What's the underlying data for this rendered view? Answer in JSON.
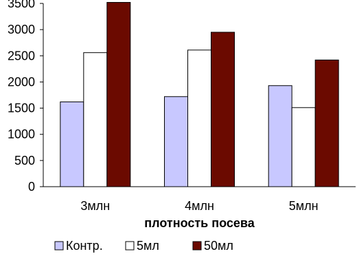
{
  "chart_data": {
    "type": "bar",
    "categories": [
      "3млн",
      "4млн",
      "5млн"
    ],
    "series": [
      {
        "name": "Контр.",
        "values": [
          1620,
          1720,
          1930
        ],
        "color": "#c8c8ff"
      },
      {
        "name": "5мл",
        "values": [
          2560,
          2610,
          1510
        ],
        "color": "#ffffff"
      },
      {
        "name": "50мл",
        "values": [
          3520,
          2950,
          2420
        ],
        "color": "#6b0a00"
      }
    ],
    "title": "",
    "xlabel": "плотность посева",
    "ylabel": "",
    "ylim": [
      0,
      3500
    ],
    "yticks": [
      0,
      500,
      1000,
      1500,
      2000,
      2500,
      3000,
      3500
    ],
    "ytick_labels": [
      "0",
      "500",
      "1000",
      "1500",
      "2000",
      "2500",
      "3000",
      "3500"
    ],
    "grid": false,
    "legend_position": "bottom"
  }
}
